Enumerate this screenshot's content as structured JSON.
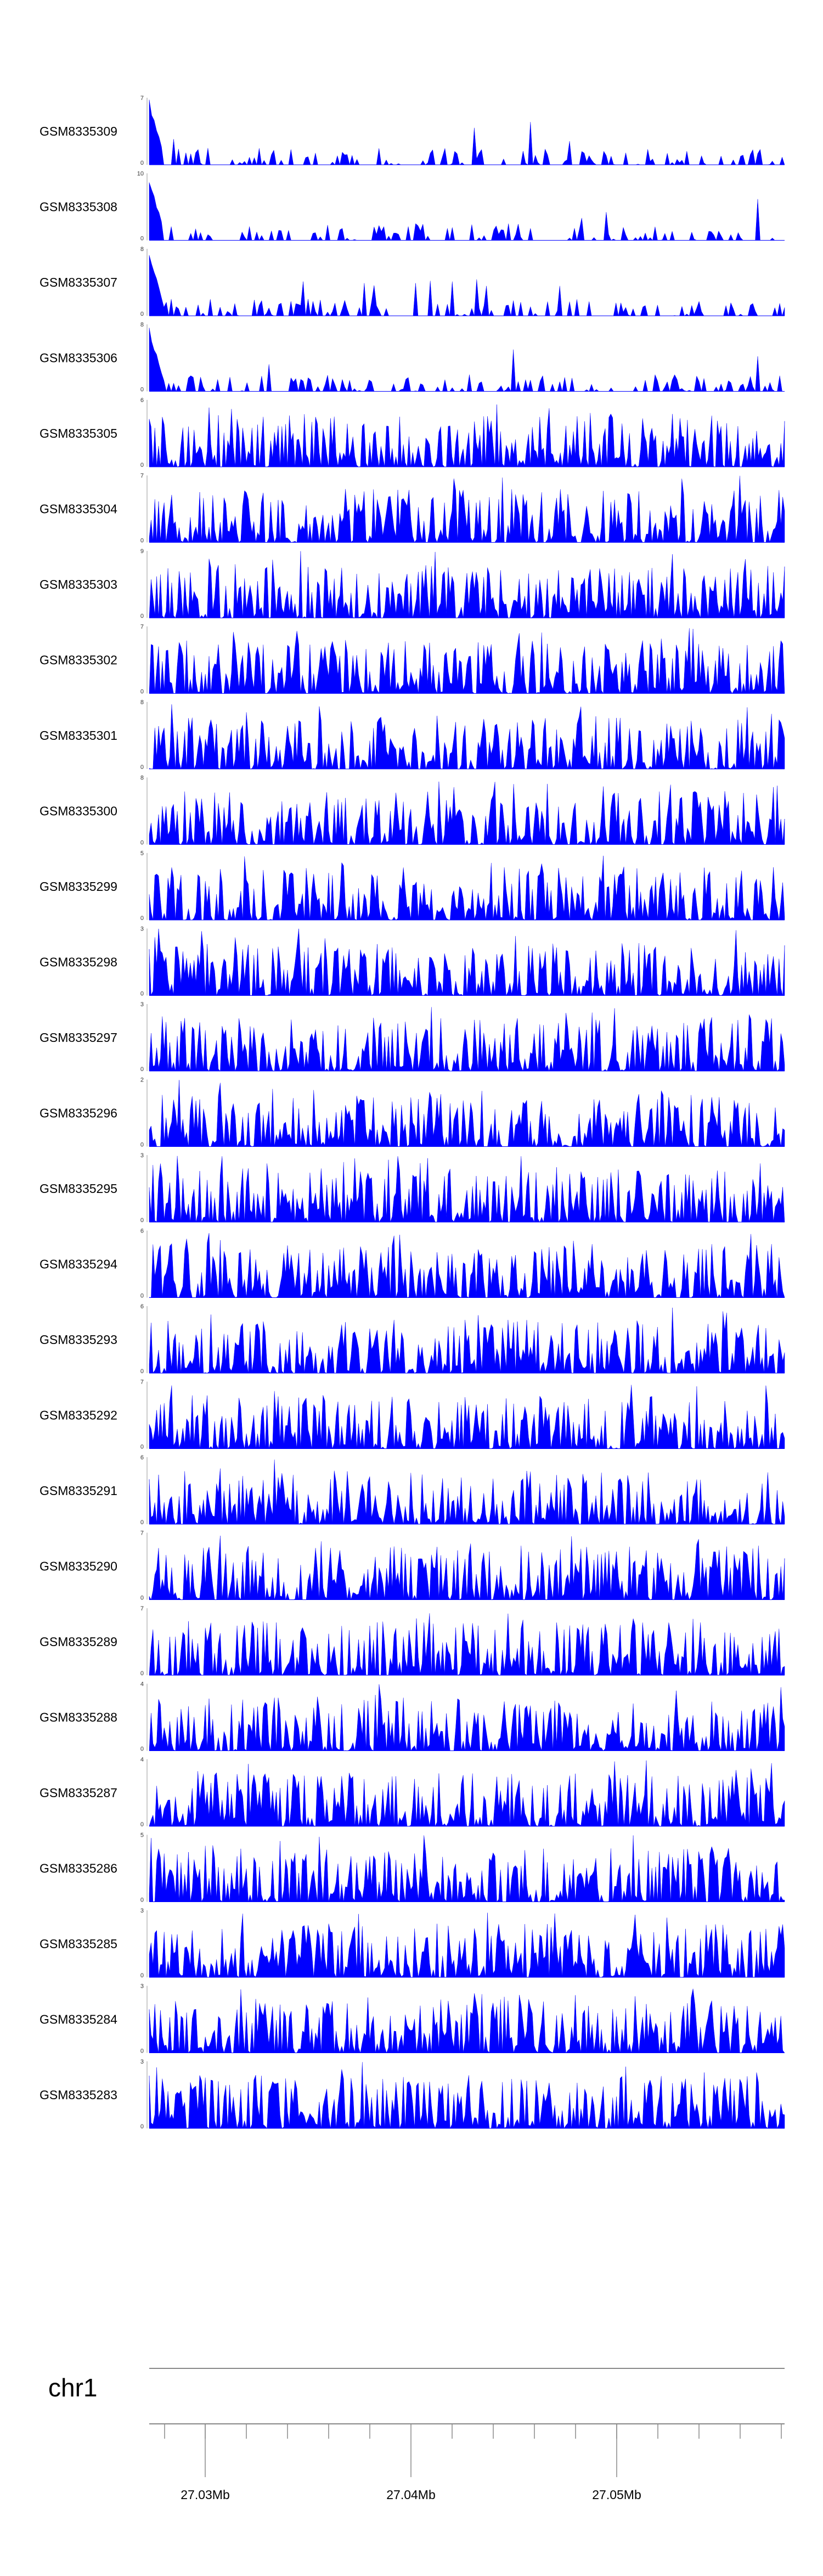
{
  "chart_data": {
    "type": "area",
    "title": "",
    "tracks": [
      {
        "name": "GSM8335309",
        "ymax": 7
      },
      {
        "name": "GSM8335308",
        "ymax": 10
      },
      {
        "name": "GSM8335307",
        "ymax": 8
      },
      {
        "name": "GSM8335306",
        "ymax": 8
      },
      {
        "name": "GSM8335305",
        "ymax": 6
      },
      {
        "name": "GSM8335304",
        "ymax": 7
      },
      {
        "name": "GSM8335303",
        "ymax": 9
      },
      {
        "name": "GSM8335302",
        "ymax": 7
      },
      {
        "name": "GSM8335301",
        "ymax": 8
      },
      {
        "name": "GSM8335300",
        "ymax": 8
      },
      {
        "name": "GSM8335299",
        "ymax": 5
      },
      {
        "name": "GSM8335298",
        "ymax": 3
      },
      {
        "name": "GSM8335297",
        "ymax": 3
      },
      {
        "name": "GSM8335296",
        "ymax": 2
      },
      {
        "name": "GSM8335295",
        "ymax": 3
      },
      {
        "name": "GSM8335294",
        "ymax": 6
      },
      {
        "name": "GSM8335293",
        "ymax": 6
      },
      {
        "name": "GSM8335292",
        "ymax": 7
      },
      {
        "name": "GSM8335291",
        "ymax": 6
      },
      {
        "name": "GSM8335290",
        "ymax": 7
      },
      {
        "name": "GSM8335289",
        "ymax": 7
      },
      {
        "name": "GSM8335288",
        "ymax": 4
      },
      {
        "name": "GSM8335287",
        "ymax": 4
      },
      {
        "name": "GSM8335286",
        "ymax": 5
      },
      {
        "name": "GSM8335285",
        "ymax": 3
      },
      {
        "name": "GSM8335284",
        "ymax": 3
      },
      {
        "name": "GSM8335283",
        "ymax": 3
      }
    ],
    "ymin": 0,
    "fill_color": "#0000ff",
    "chromosome": "chr1",
    "axis_ticks": [
      "27.03Mb",
      "27.04Mb",
      "27.05Mb"
    ]
  }
}
